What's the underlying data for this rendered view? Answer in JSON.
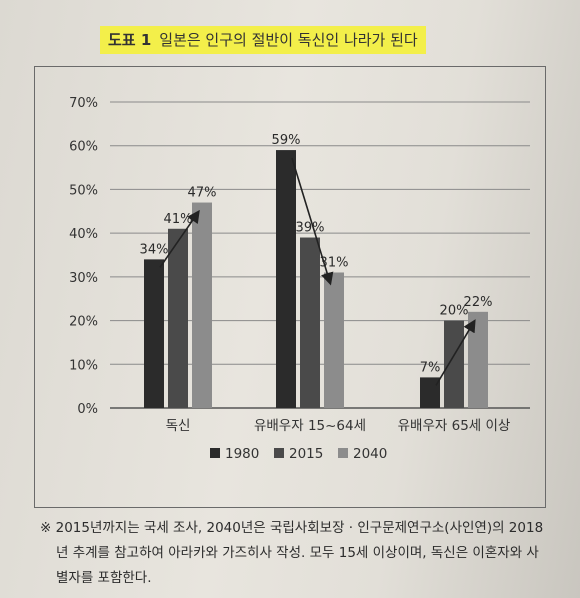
{
  "figure": {
    "tag": "도표 1",
    "title": "일본은 인구의 절반이 독신인 나라가 된다"
  },
  "chart_data": {
    "type": "bar",
    "categories": [
      "독신",
      "유배우자 15~64세",
      "유배우자 65세 이상"
    ],
    "series": [
      {
        "name": "1980",
        "values": [
          34,
          59,
          7
        ],
        "color": "#2b2b2b"
      },
      {
        "name": "2015",
        "values": [
          41,
          39,
          20
        ],
        "color": "#4a4a4a"
      },
      {
        "name": "2040",
        "values": [
          47,
          31,
          22
        ],
        "color": "#8c8c8c"
      }
    ],
    "data_labels": [
      [
        "34%",
        "59%",
        "7%"
      ],
      [
        "41%",
        "39%",
        "20%"
      ],
      [
        "47%",
        "31%",
        "22%"
      ]
    ],
    "y_ticks": [
      "0%",
      "10%",
      "20%",
      "30%",
      "40%",
      "50%",
      "60%",
      "70%"
    ],
    "ylim": [
      0,
      70
    ],
    "grid": true,
    "legend": "bottom",
    "trend_arrows": true
  },
  "footnote": "※ 2015년까지는 국세 조사, 2040년은 국립사회보장 · 인구문제연구소(사인연)의 2018년 추계를 참고하여 아라카와 가즈히사 작성. 모두 15세 이상이며, 독신은 이혼자와 사별자를 포함한다."
}
